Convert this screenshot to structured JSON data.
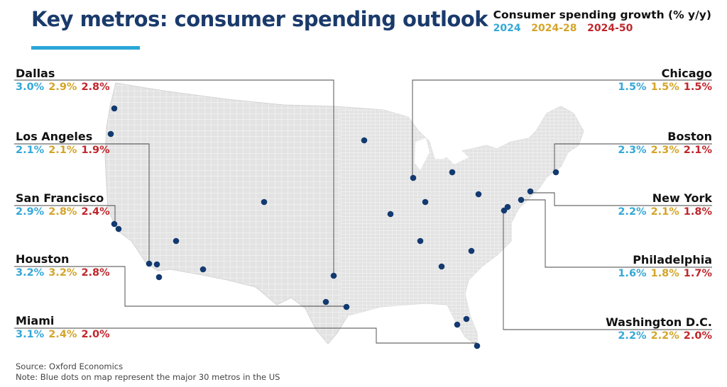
{
  "title": "Key metros: consumer spending outlook",
  "legend": {
    "title": "Consumer spending growth (% y/y)",
    "keys": [
      "2024",
      "2024-28",
      "2024-50"
    ],
    "colors": [
      "#35a8d8",
      "#d4a52a",
      "#c0272d"
    ]
  },
  "metros": [
    {
      "name": "Dallas",
      "values": [
        "3.0%",
        "2.9%",
        "2.8%"
      ]
    },
    {
      "name": "Los Angeles",
      "values": [
        "2.1%",
        "2.1%",
        "1.9%"
      ]
    },
    {
      "name": "San Francisco",
      "values": [
        "2.9%",
        "2.8%",
        "2.4%"
      ]
    },
    {
      "name": "Houston",
      "values": [
        "3.2%",
        "3.2%",
        "2.8%"
      ]
    },
    {
      "name": "Miami",
      "values": [
        "3.1%",
        "2.4%",
        "2.0%"
      ]
    },
    {
      "name": "Chicago",
      "values": [
        "1.5%",
        "1.5%",
        "1.5%"
      ]
    },
    {
      "name": "Boston",
      "values": [
        "2.3%",
        "2.3%",
        "2.1%"
      ]
    },
    {
      "name": "New York",
      "values": [
        "2.2%",
        "2.1%",
        "1.8%"
      ]
    },
    {
      "name": "Philadelphia",
      "values": [
        "1.6%",
        "1.8%",
        "1.7%"
      ]
    },
    {
      "name": "Washington D.C.",
      "values": [
        "2.2%",
        "2.2%",
        "2.0%"
      ]
    }
  ],
  "source": "Source: Oxford Economics",
  "note": "Note: Blue dots on map represent the major 30 metros in the US",
  "colors": {
    "map_fill": "#e3e3e3",
    "map_line": "#ffffff",
    "dot": "#123a70",
    "leader": "#444444"
  }
}
